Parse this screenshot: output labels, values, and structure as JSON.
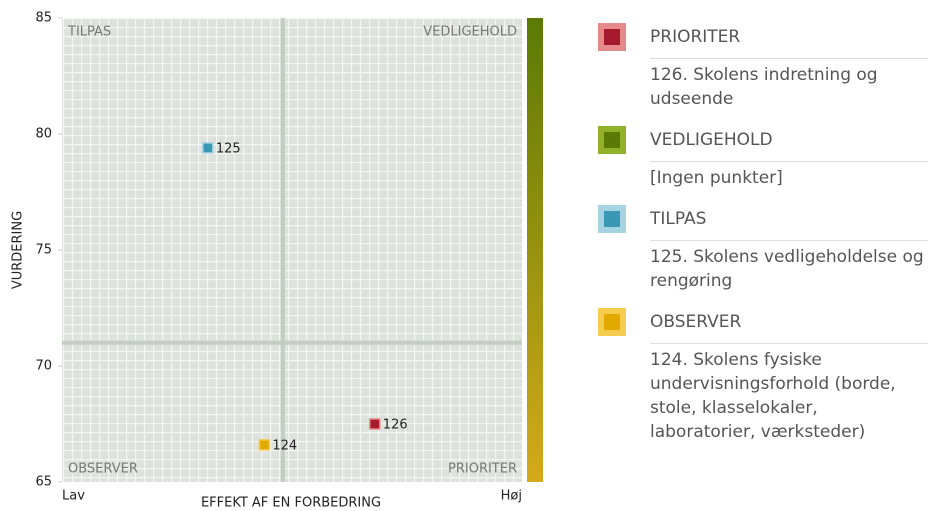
{
  "chart_data": {
    "type": "scatter",
    "xlabel": "EFFEKT AF EN FORBEDRING",
    "ylabel": "VURDERING",
    "x_end_labels": [
      "Lav",
      "Høj"
    ],
    "quadrant_labels": [
      "TILPAS",
      "VEDLIGEHOLD",
      "OBSERVER",
      "PRIORITER"
    ],
    "xlim": [
      0,
      100
    ],
    "ylim": [
      65,
      85
    ],
    "yticks": [
      65,
      70,
      75,
      80,
      85
    ],
    "dividers": {
      "x": 48,
      "y": 71
    },
    "grid": true,
    "series": [
      {
        "name": "PRIORITER",
        "color": "#a6192e",
        "light": "#e58a8a",
        "x": [
          68
        ],
        "values": [
          67.5
        ],
        "labels": [
          "126"
        ],
        "description": "126. Skolens indretning og udseende"
      },
      {
        "name": "VEDLIGEHOLD",
        "color": "#5b7a05",
        "light": "#93b02a",
        "x": [],
        "values": [],
        "labels": [],
        "description": "[Ingen punkter]"
      },
      {
        "name": "TILPAS",
        "color": "#3a97b5",
        "light": "#a6d3e2",
        "x": [
          31.7
        ],
        "values": [
          79.4
        ],
        "labels": [
          "125"
        ],
        "description": "125. Skolens vedligeholdelse og rengøring"
      },
      {
        "name": "OBSERVER",
        "color": "#e2a900",
        "light": "#f5cc4e",
        "x": [
          44
        ],
        "values": [
          66.6
        ],
        "labels": [
          "124"
        ],
        "description": "124. Skolens fysiske undervisningsforhold (borde, stole, klasselokaler, laboratorier, værksteder)"
      }
    ]
  }
}
